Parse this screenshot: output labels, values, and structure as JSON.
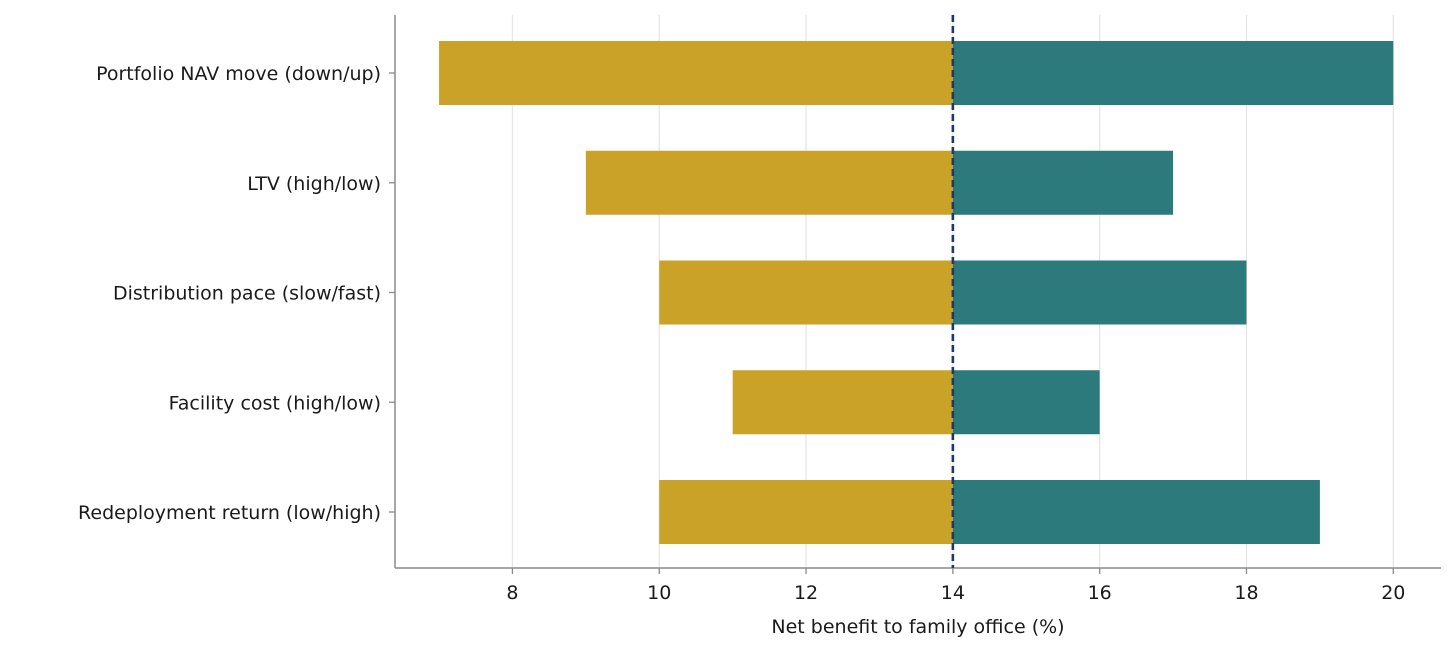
{
  "chart_data": {
    "type": "bar",
    "orientation": "horizontal",
    "subtype": "tornado",
    "title": "",
    "xlabel": "Net benefit to family office (%)",
    "ylabel": "",
    "base_value": 14,
    "xlim": [
      6.4,
      20.65
    ],
    "xticks": [
      8,
      10,
      12,
      14,
      16,
      18,
      20
    ],
    "grid": "vertical",
    "categories": [
      "Portfolio NAV move (down/up)",
      "LTV (high/low)",
      "Distribution pace (slow/fast)",
      "Facility cost (high/low)",
      "Redeployment return (low/high)"
    ],
    "low_values": [
      7,
      9,
      10,
      11,
      10
    ],
    "high_values": [
      20,
      17,
      18,
      16,
      19
    ],
    "colors": {
      "low": "#C9A227",
      "high": "#2C7A7B",
      "base_line": "#1F3864",
      "grid": "#e6e6e6",
      "axis": "#8a8a8a"
    }
  }
}
